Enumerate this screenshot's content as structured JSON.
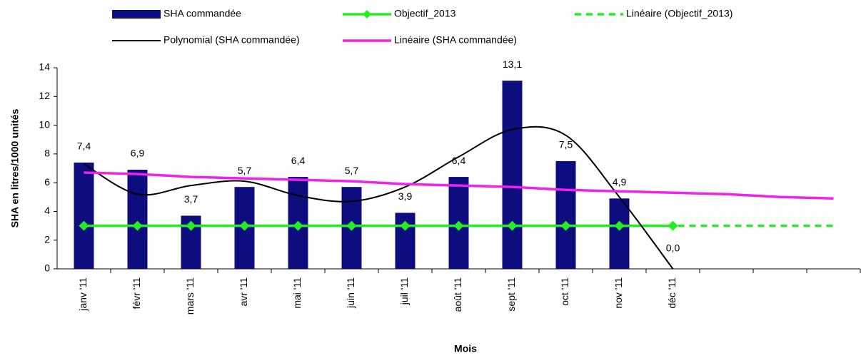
{
  "chart_data": {
    "type": "bar",
    "y_label": "SHA en litres/1000 unités",
    "x_label": "Mois",
    "categories": [
      "janv '11",
      "févr '11",
      "mars '11",
      "avr '11",
      "mai '11",
      "juin '11",
      "juil '11",
      "août '11",
      "sept '11",
      "oct '11",
      "nov '11",
      "déc '11",
      null,
      null,
      null
    ],
    "series": [
      {
        "name": "SHA commandée",
        "type": "bar",
        "color": "#0d0d80",
        "values": [
          7.4,
          6.9,
          3.7,
          5.7,
          6.4,
          5.7,
          3.9,
          6.4,
          13.1,
          7.5,
          4.9,
          0.0,
          null,
          null,
          null
        ],
        "value_labels": [
          "7,4",
          "6,9",
          "3,7",
          "5,7",
          "6,4",
          "5,7",
          "3,9",
          "6,4",
          "13,1",
          "7,5",
          "4,9",
          "0,0",
          null,
          null,
          null
        ]
      },
      {
        "name": "Objectif_2013",
        "type": "line",
        "color": "#22ee22",
        "marker": "diamond",
        "values": [
          3,
          3,
          3,
          3,
          3,
          3,
          3,
          3,
          3,
          3,
          3,
          3,
          null,
          null,
          null
        ]
      },
      {
        "name": "Linéaire (Objectif_2013)",
        "type": "line",
        "color": "#22ee22",
        "dash": true,
        "values": [
          3,
          3,
          3,
          3,
          3,
          3,
          3,
          3,
          3,
          3,
          3,
          3,
          3,
          3,
          3
        ]
      },
      {
        "name": "Polynomial (SHA commandée)",
        "type": "line",
        "color": "#000000",
        "smooth": true,
        "values": [
          7.3,
          5.2,
          5.8,
          6.1,
          5.1,
          4.7,
          5.7,
          7.8,
          9.7,
          9.3,
          5.0,
          0.0,
          null,
          null,
          null
        ]
      },
      {
        "name": "Linéaire (SHA commandée)",
        "type": "line",
        "color": "#ee22ee",
        "values": [
          6.7,
          6.6,
          6.4,
          6.3,
          6.2,
          6.1,
          5.9,
          5.8,
          5.7,
          5.5,
          5.4,
          5.3,
          5.2,
          5.0,
          4.9
        ]
      }
    ],
    "ylim": [
      0,
      14
    ],
    "yticks": [
      0,
      2,
      4,
      6,
      8,
      10,
      12,
      14
    ],
    "grid": false
  }
}
